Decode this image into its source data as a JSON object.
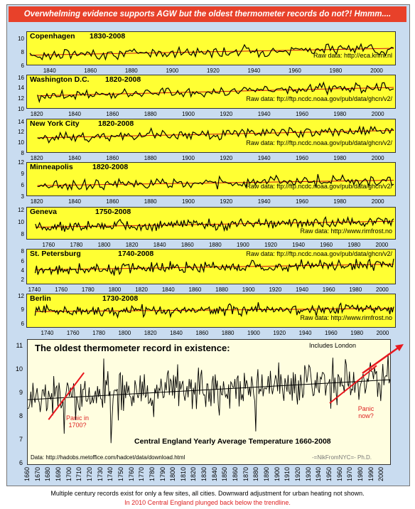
{
  "title": "Overwhelming evidence supports AGW but the oldest thermometer records do not?!   Hmmm....",
  "footnote1": "Multiple century records exist for only a few sites, all cities. Downward adjustment for urban heating not shown.",
  "footnote2": "In 2010 Central England plunged back below the trendline.",
  "colors": {
    "frame": "#c9dcf0",
    "title_bg": "#e8412a",
    "panel_bg": "#ffff33",
    "trend": "#d01010",
    "data": "#000000",
    "arrow": "#e8181e"
  },
  "chart_data": [
    {
      "type": "line",
      "title": "Copenhagen",
      "subtitle": "1830-2008",
      "source": "Raw data: http://eca.knmi.nl",
      "xlim": [
        1830,
        2008
      ],
      "ylim": [
        6,
        11
      ],
      "yticks": [
        "10",
        "8",
        "6"
      ],
      "ytick_values": [
        10,
        8,
        6
      ],
      "xticks": [
        "1840",
        "1860",
        "1880",
        "1900",
        "1920",
        "1940",
        "1960",
        "1980",
        "2000"
      ],
      "trend": [
        [
          1830,
          7.6
        ],
        [
          2008,
          8.6
        ]
      ]
    },
    {
      "type": "line",
      "title": "Washington D.C.",
      "subtitle": "1820-2008",
      "source": "Raw data: ftp://ftp.ncdc.noaa.gov/pub/data/ghcn/v2/",
      "xlim": [
        1816,
        2008
      ],
      "ylim": [
        10,
        16.5
      ],
      "yticks": [
        "16",
        "14",
        "12",
        "10"
      ],
      "ytick_values": [
        16,
        14,
        12,
        10
      ],
      "xticks": [
        "1820",
        "1840",
        "1860",
        "1880",
        "1900",
        "1920",
        "1940",
        "1960",
        "1980",
        "2000"
      ],
      "trend": [
        [
          1820,
          12.6
        ],
        [
          2008,
          14.2
        ]
      ]
    },
    {
      "type": "line",
      "title": "New York City",
      "subtitle": "1820-2008",
      "source": "Raw data: ftp://ftp.ncdc.noaa.gov/pub/data/ghcn/v2/",
      "xlim": [
        1816,
        2008
      ],
      "ylim": [
        8,
        14.5
      ],
      "yticks": [
        "14",
        "12",
        "10",
        "8"
      ],
      "ytick_values": [
        14,
        12,
        10,
        8
      ],
      "xticks": [
        "1820",
        "1840",
        "1860",
        "1880",
        "1900",
        "1920",
        "1940",
        "1960",
        "1980",
        "2000"
      ],
      "trend": [
        [
          1820,
          11.0
        ],
        [
          2008,
          12.4
        ]
      ]
    },
    {
      "type": "line",
      "title": "Minneapolis",
      "subtitle": "1820-2008",
      "source": "Raw data: ftp://ftp.ncdc.noaa.gov/pub/data/ghcn/v2/",
      "xlim": [
        1816,
        2008
      ],
      "ylim": [
        3,
        12
      ],
      "yticks": [
        "12",
        "9",
        "6",
        "3"
      ],
      "ytick_values": [
        12,
        9,
        6,
        3
      ],
      "xticks": [
        "1820",
        "1840",
        "1860",
        "1880",
        "1900",
        "1920",
        "1940",
        "1960",
        "1980",
        "2000"
      ],
      "trend": [
        [
          1820,
          6.0
        ],
        [
          2008,
          7.4
        ]
      ]
    },
    {
      "type": "line",
      "title": "Geneva",
      "subtitle": "1750-2008",
      "source": "Raw data: http://www.rimfrost.no",
      "xlim": [
        1746,
        2008
      ],
      "ylim": [
        7,
        12.5
      ],
      "yticks": [
        "12",
        "10",
        "8"
      ],
      "ytick_values": [
        12,
        10,
        8
      ],
      "xticks": [
        "1760",
        "1780",
        "1800",
        "1820",
        "1840",
        "1860",
        "1880",
        "1900",
        "1920",
        "1940",
        "1960",
        "1980",
        "2000"
      ],
      "trend": [
        [
          1750,
          9.2
        ],
        [
          2008,
          10.2
        ]
      ]
    },
    {
      "type": "line",
      "title": "St. Petersburg",
      "subtitle": "1740-2008",
      "source": "Raw data: ftp://ftp.ncdc.noaa.gov/pub/data/ghcn/v2/",
      "xlim": [
        1736,
        2008
      ],
      "ylim": [
        1,
        8.5
      ],
      "yticks": [
        "8",
        "6",
        "4",
        "2"
      ],
      "ytick_values": [
        8,
        6,
        4,
        2
      ],
      "xticks": [
        "1740",
        "1760",
        "1780",
        "1800",
        "1820",
        "1840",
        "1860",
        "1880",
        "1900",
        "1920",
        "1940",
        "1960",
        "1980",
        "2000"
      ],
      "trend": [
        [
          1740,
          4.2
        ],
        [
          2008,
          5.4
        ]
      ]
    },
    {
      "type": "line",
      "title": "Berlin",
      "subtitle": "1730-2008",
      "source": "Raw data: http://www.rimfrost.no",
      "xlim": [
        1726,
        2008
      ],
      "ylim": [
        5,
        12.5
      ],
      "yticks": [
        "12",
        "9",
        "6"
      ],
      "ytick_values": [
        12,
        9,
        6
      ],
      "xticks": [
        "1740",
        "1760",
        "1780",
        "1800",
        "1820",
        "1840",
        "1860",
        "1880",
        "1900",
        "1920",
        "1940",
        "1960",
        "1980",
        "2000"
      ],
      "trend": [
        [
          1730,
          8.7
        ],
        [
          2008,
          9.4
        ]
      ]
    },
    {
      "type": "line",
      "title": "The oldest thermometer record in existence:",
      "caption": "Central England  Yearly Average Temperature 1660-2008",
      "note": "Includes London",
      "source": "Data: http://hadobs.metoffice.com/hadcet/data/download.html",
      "credit": "-=NikFromNYC=- Ph.D.",
      "annotations": [
        {
          "text": "Panic in 1700?"
        },
        {
          "text": "Panic now?"
        }
      ],
      "xlim": [
        1660,
        2008
      ],
      "ylim": [
        6,
        11.3
      ],
      "yticks": [
        "11",
        "10",
        "9",
        "8",
        "7",
        "6"
      ],
      "ytick_values": [
        11,
        10,
        9,
        8,
        7,
        6
      ],
      "xticks": [
        "1660",
        "1670",
        "1680",
        "1690",
        "1700",
        "1710",
        "1720",
        "1730",
        "1740",
        "1750",
        "1760",
        "1770",
        "1780",
        "1790",
        "1800",
        "1810",
        "1820",
        "1830",
        "1840",
        "1850",
        "1860",
        "1870",
        "1880",
        "1890",
        "1900",
        "1910",
        "1920",
        "1930",
        "1940",
        "1950",
        "1960",
        "1970",
        "1980",
        "1990",
        "2000"
      ],
      "trend": [
        [
          1660,
          8.75
        ],
        [
          2008,
          9.6
        ]
      ],
      "series_summary": {
        "mean": 9.2,
        "min": 6.9,
        "max": 10.7
      }
    }
  ]
}
